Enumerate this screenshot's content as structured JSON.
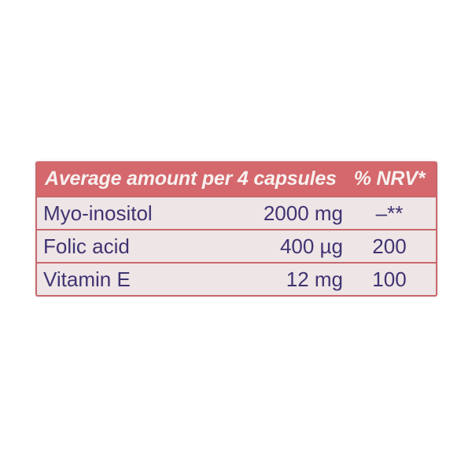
{
  "label": {
    "colors": {
      "header_bg": "#d4686c",
      "header_text": "#f8f1f0",
      "body_bg": "#eee5e6",
      "body_text": "#3f3472",
      "divider": "#c8686d"
    },
    "header": {
      "title": "Average amount per 4 capsules",
      "nrv": "% NRV*"
    },
    "rows": [
      {
        "name": "Myo-inositol",
        "amount": "2000 mg",
        "nrv": "–**"
      },
      {
        "name": "Folic acid",
        "amount": "400 µg",
        "nrv": "200"
      },
      {
        "name": "Vitamin E",
        "amount": "12 mg",
        "nrv": "100"
      }
    ]
  }
}
